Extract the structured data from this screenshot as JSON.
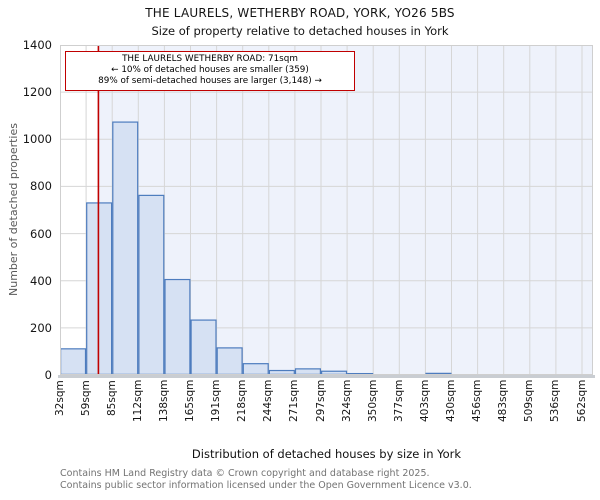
{
  "title": {
    "line1": "THE LAURELS, WETHERBY ROAD, YORK, YO26 5BS",
    "line2": "Size of property relative to detached houses in York"
  },
  "annotation": {
    "line1": "THE LAURELS WETHERBY ROAD: 71sqm",
    "line2": "← 10% of detached houses are smaller (359)",
    "line3": "89% of semi-detached houses are larger (3,148) →"
  },
  "y_axis": {
    "label": "Number of detached properties",
    "ticks": [
      "0",
      "200",
      "400",
      "600",
      "800",
      "1000",
      "1200",
      "1400"
    ]
  },
  "x_axis": {
    "label": "Distribution of detached houses by size in York",
    "ticks": [
      "32sqm",
      "59sqm",
      "85sqm",
      "112sqm",
      "138sqm",
      "165sqm",
      "191sqm",
      "218sqm",
      "244sqm",
      "271sqm",
      "297sqm",
      "324sqm",
      "350sqm",
      "377sqm",
      "403sqm",
      "430sqm",
      "456sqm",
      "483sqm",
      "509sqm",
      "536sqm",
      "562sqm"
    ]
  },
  "footer": {
    "line1": "Contains HM Land Registry data © Crown copyright and database right 2025.",
    "line2": "Contains public sector information licensed under the Open Government Licence v3.0."
  },
  "chart_data": {
    "type": "bar",
    "title": "THE LAURELS, WETHERBY ROAD, YORK, YO26 5BS",
    "subtitle": "Size of property relative to detached houses in York",
    "xlabel": "Distribution of detached houses by size in York",
    "ylabel": "Number of detached properties",
    "bin_edges_sqm": [
      32,
      59,
      85,
      112,
      138,
      165,
      191,
      218,
      244,
      271,
      297,
      324,
      350,
      377,
      403,
      430,
      456,
      483,
      509,
      536,
      562
    ],
    "categories": [
      "32sqm",
      "59sqm",
      "85sqm",
      "112sqm",
      "138sqm",
      "165sqm",
      "191sqm",
      "218sqm",
      "244sqm",
      "271sqm",
      "297sqm",
      "324sqm",
      "350sqm",
      "377sqm",
      "403sqm",
      "430sqm",
      "456sqm",
      "483sqm",
      "509sqm",
      "536sqm"
    ],
    "values": [
      111,
      730,
      1073,
      762,
      405,
      233,
      115,
      48,
      19,
      26,
      16,
      6,
      0,
      0,
      7,
      0,
      0,
      0,
      0,
      0
    ],
    "ylim": [
      0,
      1400
    ],
    "yticks": [
      0,
      200,
      400,
      600,
      800,
      1000,
      1200,
      1400
    ],
    "grid": true,
    "legend": null,
    "marker": {
      "value_sqm": 71,
      "smaller_pct": "10%",
      "smaller_count": 359,
      "larger_pct": "89%",
      "larger_count": 3148
    }
  },
  "colors": {
    "bar_fill": "#d6e1f3",
    "bar_edge": "#4d7cbe",
    "marker_line": "#c00000",
    "annotation_border": "#c00000",
    "span_fill": "#eef2fb",
    "grid": "#d6d6d6",
    "plot_border": "#cfcfcf"
  }
}
